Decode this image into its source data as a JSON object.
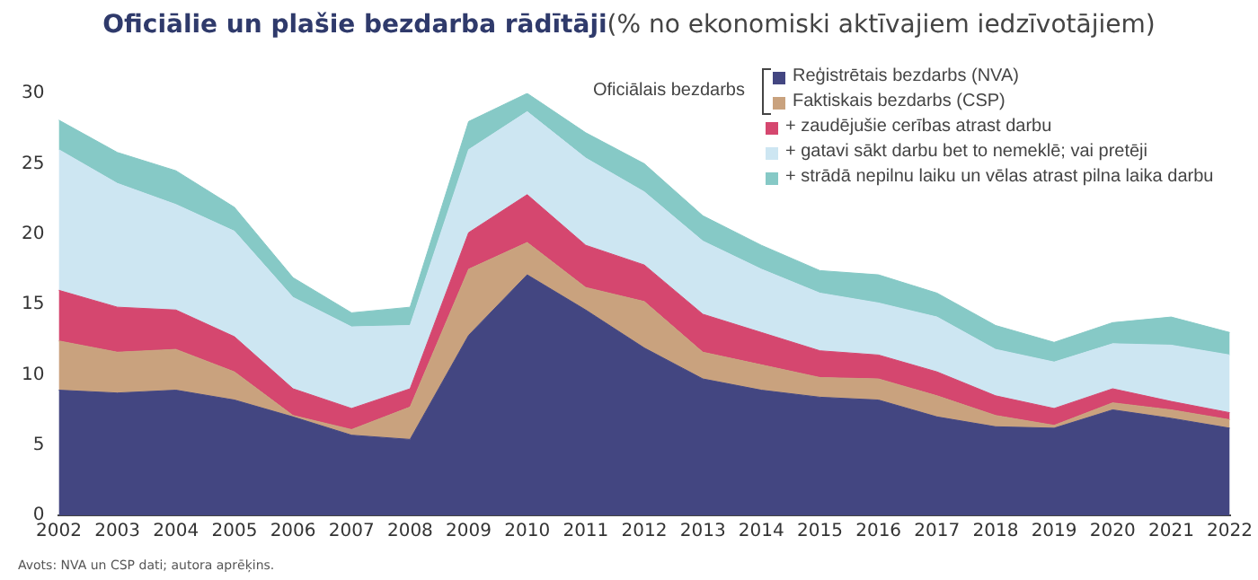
{
  "chart_data": {
    "type": "area",
    "stacked": true,
    "title": "Oficiālie un plašie bezdarba rādītāji",
    "subtitle": "(% no ekonomiski aktīvajiem iedzīvotājiem)",
    "legend_title": "Oficiālais bezdarbs",
    "legend": "top right",
    "grid": false,
    "marker": "none",
    "categories": [
      "2002",
      "2003",
      "2004",
      "2005",
      "2006",
      "2007",
      "2008",
      "2009",
      "2010",
      "2011",
      "2012",
      "2013",
      "2014",
      "2015",
      "2016",
      "2017",
      "2018",
      "2019",
      "2020",
      "2021",
      "2022"
    ],
    "ylim": [
      0,
      30
    ],
    "yticks": [
      0,
      5,
      10,
      15,
      20,
      25,
      30
    ],
    "series": [
      {
        "name": "Reģistrētais bezdarbs (NVA)",
        "color": "#434681",
        "values": [
          8.9,
          8.7,
          8.9,
          8.2,
          7.0,
          5.7,
          5.4,
          12.8,
          17.1,
          14.6,
          11.9,
          9.7,
          8.9,
          8.4,
          8.2,
          7.0,
          6.3,
          6.2,
          7.5,
          6.9,
          6.2
        ]
      },
      {
        "name": "Faktiskais bezdarbs (CSP)",
        "color": "#c9a27e",
        "values": [
          3.5,
          2.9,
          2.9,
          2.0,
          0.1,
          0.4,
          2.3,
          4.7,
          2.3,
          1.6,
          3.3,
          1.9,
          1.8,
          1.4,
          1.5,
          1.5,
          0.8,
          0.2,
          0.5,
          0.6,
          0.6
        ]
      },
      {
        "name": "+ zaudējušie cerības atrast darbu",
        "color": "#d5476f",
        "values": [
          3.6,
          3.2,
          2.8,
          2.5,
          1.9,
          1.5,
          1.3,
          2.6,
          3.4,
          3.0,
          2.6,
          2.7,
          2.3,
          1.9,
          1.7,
          1.7,
          1.4,
          1.2,
          1.0,
          0.6,
          0.5
        ]
      },
      {
        "name": "+ gatavi sākt darbu bet to nemeklē; vai pretēji",
        "color": "#cde6f2",
        "values": [
          10.0,
          8.8,
          7.5,
          7.5,
          6.5,
          5.8,
          4.5,
          5.9,
          5.9,
          6.2,
          5.2,
          5.2,
          4.5,
          4.1,
          3.7,
          3.9,
          3.3,
          3.3,
          3.2,
          4.0,
          4.1
        ]
      },
      {
        "name": "+ strādā nepilnu laiku un vēlas atrast pilna laika darbu",
        "color": "#86c9c6",
        "values": [
          2.1,
          2.2,
          2.4,
          1.7,
          1.4,
          1.0,
          1.3,
          2.0,
          1.3,
          1.8,
          2.0,
          1.8,
          1.7,
          1.6,
          2.0,
          1.7,
          1.7,
          1.4,
          1.5,
          2.0,
          1.6
        ]
      }
    ],
    "annotations": [
      "Avots: NVA un CSP dati; autora aprēķins."
    ]
  }
}
